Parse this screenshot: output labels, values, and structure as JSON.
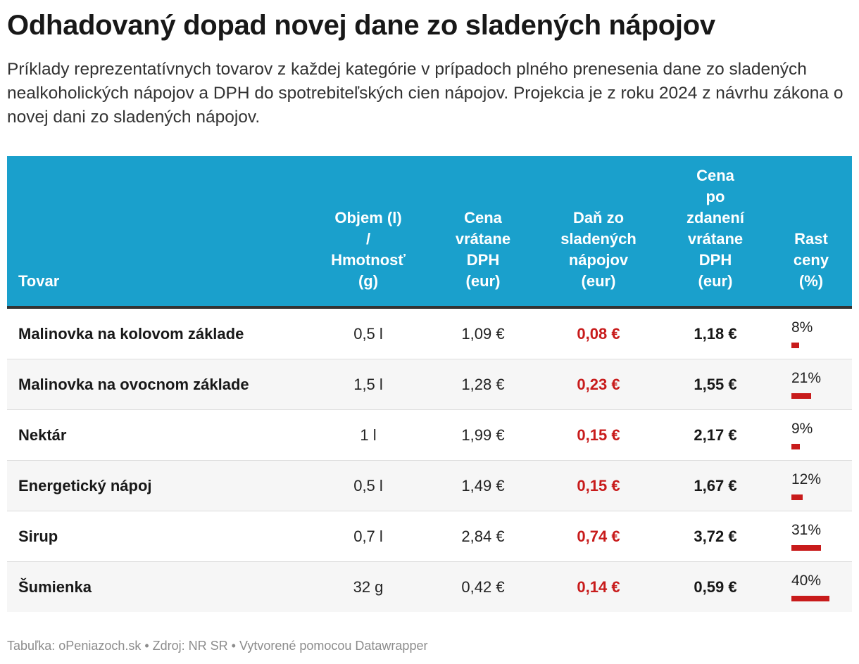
{
  "title": "Odhadovaný dopad novej dane zo sladených nápojov",
  "subtitle": "Príklady reprezentatívnych tovarov z každej kategórie v prípadoch plného prenesenia dane zo sladených nealkoholických nápojov a DPH do spotrebiteľských cien nápojov. Projekcia je z roku 2024 z návrhu zákona o novej dani zo sladených nápojov.",
  "colors": {
    "header_bg": "#1aa0cc",
    "accent_red": "#c81b1b",
    "header_border": "#333333"
  },
  "table": {
    "headers": [
      [
        "Tovar"
      ],
      [
        "Objem (l)",
        "/",
        "Hmotnosť",
        "(g)"
      ],
      [
        "Cena",
        "vrátane",
        "DPH",
        "(eur)"
      ],
      [
        "Daň zo",
        "sladených",
        "nápojov",
        "(eur)"
      ],
      [
        "Cena",
        "po",
        "zdanení",
        "vrátane",
        "DPH",
        "(eur)"
      ],
      [
        "Rast",
        "ceny",
        "(%)"
      ]
    ]
  },
  "chart_data": {
    "type": "table",
    "columns": [
      "Tovar",
      "Objem (l) / Hmotnosť (g)",
      "Cena vrátane DPH (eur)",
      "Daň zo sladených nápojov (eur)",
      "Cena po zdanení vrátane DPH (eur)",
      "Rast ceny (%)"
    ],
    "rows": [
      {
        "name": "Malinovka na kolovom základe",
        "volume": "0,5 l",
        "price": "1,09 €",
        "tax": "0,08 €",
        "price_after": "1,18 €",
        "growth_label": "8%",
        "growth": 8
      },
      {
        "name": "Malinovka na ovocnom základe",
        "volume": "1,5 l",
        "price": "1,28 €",
        "tax": "0,23 €",
        "price_after": "1,55 €",
        "growth_label": "21%",
        "growth": 21
      },
      {
        "name": "Nektár",
        "volume": "1 l",
        "price": "1,99 €",
        "tax": "0,15 €",
        "price_after": "2,17 €",
        "growth_label": "9%",
        "growth": 9
      },
      {
        "name": "Energetický nápoj",
        "volume": "0,5 l",
        "price": "1,49 €",
        "tax": "0,15 €",
        "price_after": "1,67 €",
        "growth_label": "12%",
        "growth": 12
      },
      {
        "name": "Sirup",
        "volume": "0,7 l",
        "price": "2,84 €",
        "tax": "0,74 €",
        "price_after": "3,72 €",
        "growth_label": "31%",
        "growth": 31
      },
      {
        "name": "Šumienka",
        "volume": "32 g",
        "price": "0,42 €",
        "tax": "0,14 €",
        "price_after": "0,59 €",
        "growth_label": "40%",
        "growth": 40
      }
    ],
    "growth_max": 40
  },
  "footer": "Tabuľka: oPeniazoch.sk • Zdroj: NR SR • Vytvorené pomocou Datawrapper"
}
